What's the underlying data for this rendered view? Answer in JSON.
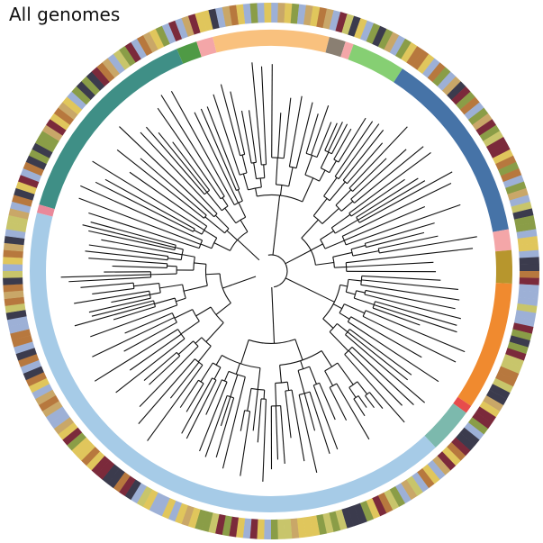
{
  "title": "All genomes",
  "palette": {
    "teal": "#3f8f86",
    "green": "#4f9a45",
    "pink": "#f4a6a8",
    "peach": "#f9c17e",
    "grey": "#8a7f72",
    "lightgreen": "#86cf73",
    "steelblue": "#4673a7",
    "olive": "#b7962d",
    "orange": "#f08a2f",
    "red": "#e74c4c",
    "mint": "#7cb9ad",
    "lightblue": "#a6cbe7",
    "rose": "#e9899a",
    "outer": [
      "#e0c65c",
      "#8a9d47",
      "#7b2a3b",
      "#9db0d6",
      "#c9a768",
      "#3b3b4d",
      "#c8c56b",
      "#b7783e"
    ]
  },
  "inner_ring_segments": [
    {
      "color": "teal",
      "start": -74,
      "end": -23
    },
    {
      "color": "green",
      "start": -23,
      "end": -18
    },
    {
      "color": "pink",
      "start": -18,
      "end": -14
    },
    {
      "color": "peach",
      "start": -14,
      "end": 14
    },
    {
      "color": "grey",
      "start": 14,
      "end": 18
    },
    {
      "color": "pink",
      "start": 18,
      "end": 20
    },
    {
      "color": "lightgreen",
      "start": 20,
      "end": 33
    },
    {
      "color": "steelblue",
      "start": 33,
      "end": 80
    },
    {
      "color": "pink",
      "start": 80,
      "end": 85
    },
    {
      "color": "olive",
      "start": 85,
      "end": 93
    },
    {
      "color": "orange",
      "start": 93,
      "end": 124
    },
    {
      "color": "red",
      "start": 124,
      "end": 126
    },
    {
      "color": "mint",
      "start": 126,
      "end": 137
    },
    {
      "color": "lightblue",
      "start": 137,
      "end": 284
    },
    {
      "color": "rose",
      "start": 284,
      "end": 286
    }
  ]
}
